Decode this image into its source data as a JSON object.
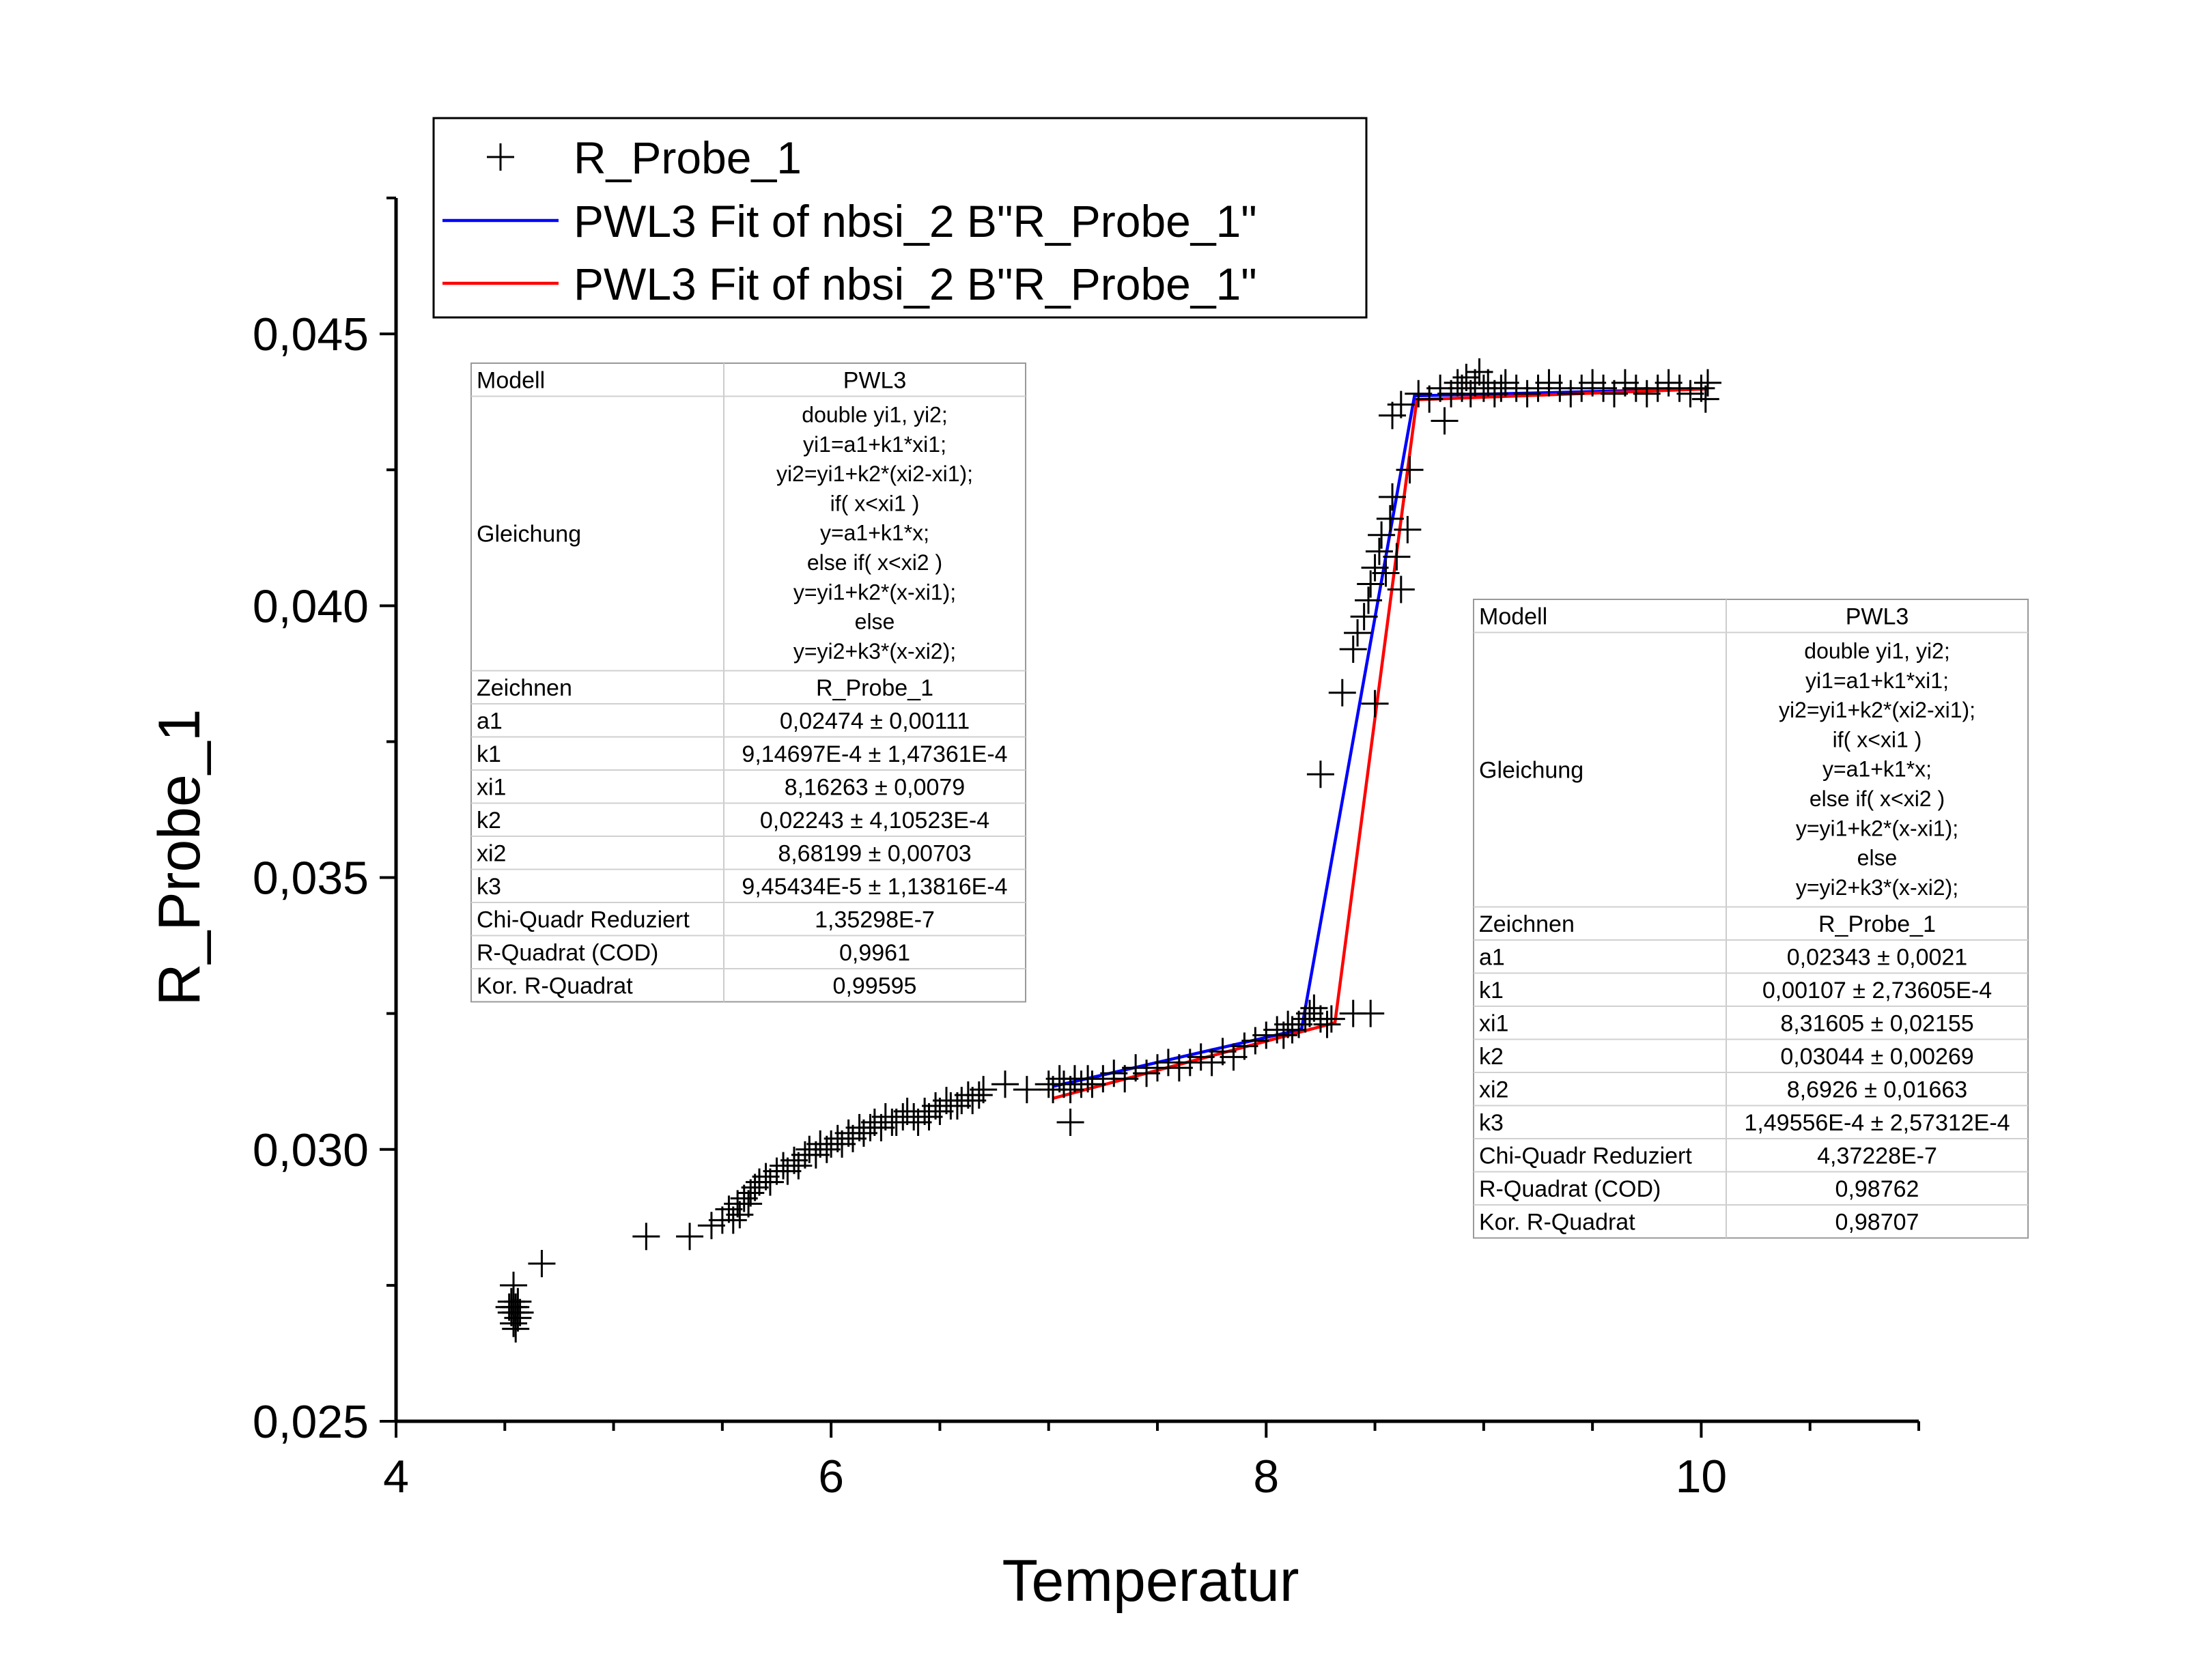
{
  "chart_data": {
    "type": "scatter",
    "title": "",
    "xlabel": "Temperatur",
    "ylabel": "R_Probe_1",
    "xlim": [
      4,
      11
    ],
    "ylim": [
      0.025,
      0.0475
    ],
    "x_ticks": [
      4,
      6,
      8,
      10
    ],
    "x_tick_labels": [
      "4",
      "6",
      "8",
      "10"
    ],
    "y_ticks": [
      0.025,
      0.03,
      0.035,
      0.04,
      0.045
    ],
    "y_tick_labels": [
      "0,025",
      "0,030",
      "0,035",
      "0,040",
      "0,045"
    ],
    "grid": false,
    "legend_position": "top-center",
    "legend": [
      {
        "label": "R_Probe_1",
        "marker": "plus",
        "color": "#000000"
      },
      {
        "label": "PWL3 Fit of nbsi_2 B\"R_Probe_1\"",
        "line": true,
        "color": "#0000ff"
      },
      {
        "label": "PWL3 Fit of nbsi_2 B\"R_Probe_1\"",
        "line": true,
        "color": "#ff0000"
      }
    ],
    "series": [
      {
        "name": "R_Probe_1",
        "kind": "scatter",
        "marker": "plus",
        "color": "#000000",
        "points": [
          [
            4.54,
            0.0271
          ],
          [
            4.55,
            0.027
          ],
          [
            4.53,
            0.0272
          ],
          [
            4.56,
            0.0269
          ],
          [
            4.54,
            0.0268
          ],
          [
            4.55,
            0.0271
          ],
          [
            4.53,
            0.027
          ],
          [
            4.56,
            0.0272
          ],
          [
            4.54,
            0.0275
          ],
          [
            4.55,
            0.0267
          ],
          [
            4.57,
            0.027
          ],
          [
            4.52,
            0.0271
          ],
          [
            4.67,
            0.0279
          ],
          [
            5.15,
            0.0284
          ],
          [
            5.35,
            0.0284
          ],
          [
            5.45,
            0.0286
          ],
          [
            5.5,
            0.0287
          ],
          [
            5.53,
            0.0289
          ],
          [
            5.55,
            0.0287
          ],
          [
            5.57,
            0.029
          ],
          [
            5.58,
            0.0288
          ],
          [
            5.6,
            0.0291
          ],
          [
            5.62,
            0.029
          ],
          [
            5.63,
            0.0292
          ],
          [
            5.65,
            0.0293
          ],
          [
            5.67,
            0.0294
          ],
          [
            5.7,
            0.0295
          ],
          [
            5.72,
            0.0294
          ],
          [
            5.75,
            0.0296
          ],
          [
            5.78,
            0.0297
          ],
          [
            5.8,
            0.0296
          ],
          [
            5.83,
            0.0298
          ],
          [
            5.85,
            0.0297
          ],
          [
            5.88,
            0.0299
          ],
          [
            5.9,
            0.03
          ],
          [
            5.93,
            0.0299
          ],
          [
            5.95,
            0.0301
          ],
          [
            5.98,
            0.03
          ],
          [
            6.0,
            0.0301
          ],
          [
            6.03,
            0.0302
          ],
          [
            6.05,
            0.0301
          ],
          [
            6.08,
            0.0303
          ],
          [
            6.1,
            0.0302
          ],
          [
            6.13,
            0.0304
          ],
          [
            6.15,
            0.0303
          ],
          [
            6.18,
            0.0304
          ],
          [
            6.2,
            0.0305
          ],
          [
            6.23,
            0.0304
          ],
          [
            6.25,
            0.0306
          ],
          [
            6.28,
            0.0305
          ],
          [
            6.3,
            0.0305
          ],
          [
            6.33,
            0.0306
          ],
          [
            6.35,
            0.0307
          ],
          [
            6.38,
            0.0306
          ],
          [
            6.4,
            0.0305
          ],
          [
            6.43,
            0.0307
          ],
          [
            6.45,
            0.0306
          ],
          [
            6.48,
            0.0308
          ],
          [
            6.5,
            0.0307
          ],
          [
            6.53,
            0.0309
          ],
          [
            6.55,
            0.0308
          ],
          [
            6.58,
            0.0308
          ],
          [
            6.6,
            0.0309
          ],
          [
            6.63,
            0.031
          ],
          [
            6.65,
            0.0309
          ],
          [
            6.68,
            0.031
          ],
          [
            6.7,
            0.0311
          ],
          [
            6.8,
            0.0312
          ],
          [
            6.9,
            0.0311
          ],
          [
            7.0,
            0.0312
          ],
          [
            7.02,
            0.0311
          ],
          [
            7.05,
            0.0313
          ],
          [
            7.07,
            0.0312
          ],
          [
            7.1,
            0.0311
          ],
          [
            7.12,
            0.0313
          ],
          [
            7.1,
            0.0305
          ],
          [
            7.15,
            0.0312
          ],
          [
            7.18,
            0.0313
          ],
          [
            7.2,
            0.0312
          ],
          [
            7.25,
            0.0313
          ],
          [
            7.3,
            0.0314
          ],
          [
            7.35,
            0.0313
          ],
          [
            7.4,
            0.0315
          ],
          [
            7.45,
            0.0314
          ],
          [
            7.5,
            0.0315
          ],
          [
            7.55,
            0.0316
          ],
          [
            7.6,
            0.0315
          ],
          [
            7.65,
            0.0316
          ],
          [
            7.7,
            0.0317
          ],
          [
            7.75,
            0.0316
          ],
          [
            7.8,
            0.0318
          ],
          [
            7.85,
            0.0317
          ],
          [
            7.9,
            0.0319
          ],
          [
            7.95,
            0.032
          ],
          [
            8.0,
            0.0321
          ],
          [
            8.05,
            0.0322
          ],
          [
            8.08,
            0.0321
          ],
          [
            8.1,
            0.0323
          ],
          [
            8.12,
            0.0322
          ],
          [
            8.15,
            0.0323
          ],
          [
            8.18,
            0.0324
          ],
          [
            8.2,
            0.0325
          ],
          [
            8.22,
            0.0326
          ],
          [
            8.25,
            0.0324
          ],
          [
            8.28,
            0.0323
          ],
          [
            8.3,
            0.0324
          ],
          [
            8.4,
            0.0325
          ],
          [
            8.48,
            0.0325
          ],
          [
            8.25,
            0.0369
          ],
          [
            8.35,
            0.0384
          ],
          [
            8.4,
            0.0392
          ],
          [
            8.42,
            0.0395
          ],
          [
            8.45,
            0.0398
          ],
          [
            8.47,
            0.0401
          ],
          [
            8.48,
            0.0404
          ],
          [
            8.5,
            0.0407
          ],
          [
            8.52,
            0.041
          ],
          [
            8.53,
            0.0413
          ],
          [
            8.55,
            0.0406
          ],
          [
            8.57,
            0.0416
          ],
          [
            8.58,
            0.042
          ],
          [
            8.5,
            0.0382
          ],
          [
            8.6,
            0.0409
          ],
          [
            8.62,
            0.0403
          ],
          [
            8.65,
            0.0414
          ],
          [
            8.66,
            0.0425
          ],
          [
            8.58,
            0.0435
          ],
          [
            8.62,
            0.0437
          ],
          [
            8.7,
            0.0439
          ],
          [
            8.75,
            0.0438
          ],
          [
            8.8,
            0.044
          ],
          [
            8.82,
            0.0434
          ],
          [
            8.85,
            0.0439
          ],
          [
            8.88,
            0.0441
          ],
          [
            8.9,
            0.044
          ],
          [
            8.92,
            0.0442
          ],
          [
            8.94,
            0.0439
          ],
          [
            8.96,
            0.0441
          ],
          [
            8.98,
            0.0443
          ],
          [
            9.0,
            0.044
          ],
          [
            9.02,
            0.0441
          ],
          [
            9.05,
            0.0439
          ],
          [
            9.08,
            0.044
          ],
          [
            9.1,
            0.0441
          ],
          [
            9.15,
            0.044
          ],
          [
            9.2,
            0.0439
          ],
          [
            9.25,
            0.044
          ],
          [
            9.3,
            0.0441
          ],
          [
            9.35,
            0.044
          ],
          [
            9.4,
            0.0439
          ],
          [
            9.45,
            0.044
          ],
          [
            9.5,
            0.0441
          ],
          [
            9.55,
            0.044
          ],
          [
            9.6,
            0.0439
          ],
          [
            9.65,
            0.0441
          ],
          [
            9.7,
            0.044
          ],
          [
            9.75,
            0.0439
          ],
          [
            9.8,
            0.044
          ],
          [
            9.85,
            0.0441
          ],
          [
            9.9,
            0.044
          ],
          [
            9.95,
            0.0439
          ],
          [
            10.0,
            0.044
          ],
          [
            10.02,
            0.0438
          ],
          [
            10.03,
            0.0441
          ]
        ]
      },
      {
        "name": "PWL3 Fit of nbsi_2 B\"R_Probe_1\"",
        "kind": "line",
        "color": "#0000ff",
        "x": [
          7.02,
          8.16263,
          8.68199,
          10.03
        ],
        "y": [
          0.03116,
          0.03221,
          0.04386,
          0.04399
        ]
      },
      {
        "name": "PWL3 Fit of nbsi_2 B\"R_Probe_1\"",
        "kind": "line",
        "color": "#ff0000",
        "x": [
          7.02,
          8.31605,
          8.6926,
          10.03
        ],
        "y": [
          0.03094,
          0.03233,
          0.04379,
          0.04399
        ]
      }
    ],
    "fit_tables": [
      {
        "equation": [
          "double yi1, yi2;",
          "yi1=a1+k1*xi1;",
          "yi2=yi1+k2*(xi2-xi1);",
          "if( x<xi1 )",
          "y=a1+k1*x;",
          "else if( x<xi2 )",
          "y=yi1+k2*(x-xi1);",
          "else",
          "y=yi2+k3*(x-xi2);"
        ],
        "rows": [
          [
            "Modell",
            "PWL3"
          ],
          [
            "Gleichung",
            ""
          ],
          [
            "Zeichnen",
            "R_Probe_1"
          ],
          [
            "a1",
            "0,02474 ± 0,00111"
          ],
          [
            "k1",
            "9,14697E-4 ± 1,47361E-4"
          ],
          [
            "xi1",
            "8,16263 ± 0,0079"
          ],
          [
            "k2",
            "0,02243 ± 4,10523E-4"
          ],
          [
            "xi2",
            "8,68199 ± 0,00703"
          ],
          [
            "k3",
            "9,45434E-5 ± 1,13816E-4"
          ],
          [
            "Chi-Quadr Reduziert",
            "1,35298E-7"
          ],
          [
            "R-Quadrat (COD)",
            "0,9961"
          ],
          [
            "Kor. R-Quadrat",
            "0,99595"
          ]
        ]
      },
      {
        "equation": [
          "double yi1, yi2;",
          "yi1=a1+k1*xi1;",
          "yi2=yi1+k2*(xi2-xi1);",
          "if( x<xi1 )",
          "y=a1+k1*x;",
          "else if( x<xi2 )",
          "y=yi1+k2*(x-xi1);",
          "else",
          "y=yi2+k3*(x-xi2);"
        ],
        "rows": [
          [
            "Modell",
            "PWL3"
          ],
          [
            "Gleichung",
            ""
          ],
          [
            "Zeichnen",
            "R_Probe_1"
          ],
          [
            "a1",
            "0,02343 ± 0,0021"
          ],
          [
            "k1",
            "0,00107 ± 2,73605E-4"
          ],
          [
            "xi1",
            "8,31605 ± 0,02155"
          ],
          [
            "k2",
            "0,03044 ± 0,00269"
          ],
          [
            "xi2",
            "8,6926 ± 0,01663"
          ],
          [
            "k3",
            "1,49556E-4 ± 2,57312E-4"
          ],
          [
            "Chi-Quadr Reduziert",
            "4,37228E-7"
          ],
          [
            "R-Quadrat (COD)",
            "0,98762"
          ],
          [
            "Kor. R-Quadrat",
            "0,98707"
          ]
        ]
      }
    ]
  }
}
